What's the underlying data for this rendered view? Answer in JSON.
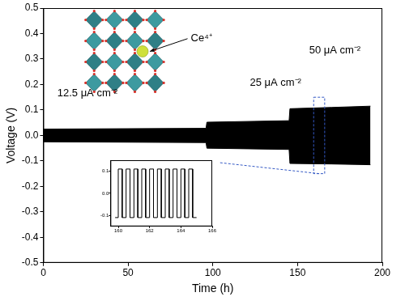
{
  "chart_data": {
    "type": "line",
    "x_label": "Time (h)",
    "y_label": "Voltage (V)",
    "x": [
      0,
      96,
      96.5,
      145,
      145.5,
      170,
      193
    ],
    "series": [
      {
        "color": "#000000",
        "values": [
          0.025,
          0.028,
          0.052,
          0.058,
          0.105,
          0.11,
          0.115
        ]
      },
      {
        "color": "#000000",
        "values": [
          -0.025,
          -0.028,
          -0.05,
          -0.055,
          -0.11,
          -0.112,
          -0.115
        ]
      }
    ],
    "xlim": [
      0,
      200
    ],
    "ylim": [
      -0.5,
      0.5
    ],
    "xticks": [
      0,
      50,
      100,
      150,
      200
    ],
    "yticks": [
      -0.5,
      -0.4,
      -0.3,
      -0.2,
      -0.1,
      {
        "value": 0,
        "label": "0.0"
      },
      0.1,
      0.2,
      0.3,
      0.4,
      0.5
    ],
    "grid": false,
    "annotations": [
      "Ce⁴⁺",
      "12.5 μA cm⁻²",
      "25 μA cm⁻²",
      "50 μA cm⁻²"
    ],
    "inset": {
      "type": "line",
      "color": "#000000",
      "x": [
        159.8,
        160,
        160,
        160.25,
        160.25,
        160.5,
        160.5,
        160.75,
        160.75,
        161,
        161,
        161.25,
        161.25,
        161.5,
        161.5,
        161.75,
        161.75,
        162,
        162,
        162.25,
        162.25,
        162.5,
        162.5,
        162.75,
        162.75,
        163,
        163,
        163.25,
        163.25,
        163.5,
        163.5,
        163.75,
        163.75,
        164,
        164,
        164.25,
        164.25,
        164.5,
        164.5,
        164.75,
        164.75,
        165
      ],
      "values": [
        -0.11,
        -0.11,
        0.11,
        0.11,
        -0.11,
        -0.11,
        0.11,
        0.11,
        -0.11,
        -0.11,
        0.11,
        0.11,
        -0.11,
        -0.11,
        0.11,
        0.11,
        -0.11,
        -0.11,
        0.11,
        0.11,
        -0.11,
        -0.11,
        0.11,
        0.11,
        -0.11,
        -0.11,
        0.11,
        0.11,
        -0.11,
        -0.11,
        0.11,
        0.11,
        -0.11,
        -0.11,
        0.11,
        0.11,
        -0.11,
        -0.11,
        0.11,
        0.11,
        -0.11,
        -0.11
      ],
      "xlim": [
        159.5,
        166
      ],
      "ylim": [
        -0.15,
        0.15
      ],
      "xticks": [
        160,
        162,
        164,
        166
      ],
      "yticks": [
        -0.1,
        {
          "value": 0,
          "label": "0.0"
        },
        0.1
      ]
    }
  }
}
